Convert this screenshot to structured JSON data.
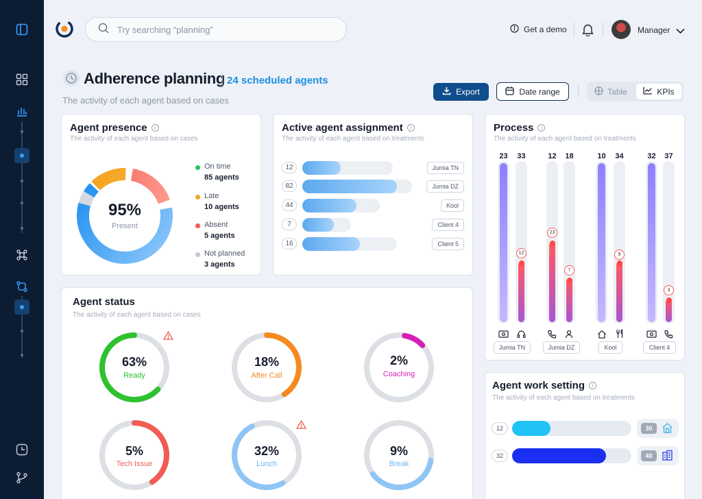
{
  "search": {
    "placeholder": "Try searching “planning”"
  },
  "topbar": {
    "demo_label": "Get a demo",
    "user_name": "Manager"
  },
  "header": {
    "title": "Adherence planning",
    "scheduled": "24 scheduled agents",
    "subtitle": "The activity of each agent based on cases",
    "export_label": "Export",
    "date_label": "Date range",
    "view_table": "Table",
    "view_kpis": "KPIs"
  },
  "presence": {
    "title": "Agent presence",
    "subtitle": "The activity of each agent based on cases",
    "center_value": "95%",
    "center_label": "Present",
    "legend": [
      {
        "label": "On time",
        "value": "85 agents",
        "color": "#22c55e"
      },
      {
        "label": "Late",
        "value": "10 agents",
        "color": "#f5a623"
      },
      {
        "label": "Absent",
        "value": "5 agents",
        "color": "#f25c54"
      },
      {
        "label": "Not planned",
        "value": "3 agents",
        "color": "#c4c9d1"
      }
    ]
  },
  "assignment": {
    "title": "Active agent assignment",
    "subtitle": "The activity of each agent based on treatments",
    "rows": [
      {
        "count": "12",
        "client": "Jumia TN"
      },
      {
        "count": "82",
        "client": "Jumia DZ"
      },
      {
        "count": "44",
        "client": "Kool"
      },
      {
        "count": "7",
        "client": "Client 4"
      },
      {
        "count": "16",
        "client": "Client 5"
      }
    ]
  },
  "process": {
    "title": "Process",
    "subtitle": "The activity of each agent based on treatments",
    "groups": [
      {
        "label": "Jumia TN",
        "top": [
          "23",
          "33"
        ],
        "bubble": "12",
        "icons": [
          "money-icon",
          "headset-icon"
        ]
      },
      {
        "label": "Jumia DZ",
        "top": [
          "12",
          "18"
        ],
        "bubbles": [
          "23",
          "7"
        ],
        "icons": [
          "phone-icon",
          "user-icon"
        ]
      },
      {
        "label": "Kool",
        "top": [
          "10",
          "34"
        ],
        "bubble": "9",
        "icons": [
          "home-icon",
          "utensils-icon"
        ]
      },
      {
        "label": "Client 4",
        "top": [
          "32",
          "37"
        ],
        "bubble": "3",
        "icons": [
          "money-icon",
          "phone-icon"
        ]
      }
    ]
  },
  "status": {
    "title": "Agent status",
    "subtitle": "The activity of each agent based on cases",
    "items": [
      {
        "pct": "63%",
        "label": "Ready",
        "color": "#2fc12f",
        "fraction": 0.63
      },
      {
        "pct": "18%",
        "label": "After Call",
        "color": "#f58a1f",
        "fraction": 0.18
      },
      {
        "pct": "2%",
        "label": "Coaching",
        "color": "#d51fb5",
        "fraction": 0.02
      },
      {
        "pct": "5%",
        "label": "Tech Issue",
        "color": "#f25c54",
        "fraction": 0.05
      },
      {
        "pct": "32%",
        "label": "Lunch",
        "color": "#6fb4f0",
        "fraction": 0.32
      },
      {
        "pct": "9%",
        "label": "Break",
        "color": "#6fb4f0",
        "fraction": 0.09
      }
    ]
  },
  "work_setting": {
    "title": "Agent work setting",
    "subtitle": "The activity of each agent based on treatments",
    "rows": [
      {
        "count": "12",
        "total": "30",
        "icon": "office-icon",
        "color": "#1fc3f5"
      },
      {
        "count": "32",
        "total": "40",
        "icon": "building-icon",
        "color": "#1a2ff0"
      }
    ]
  }
}
